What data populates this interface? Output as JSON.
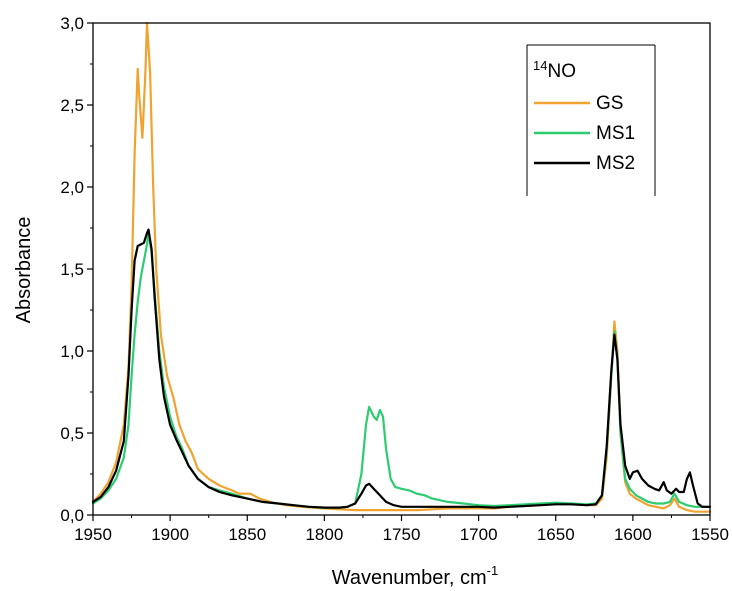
{
  "chart_data": {
    "type": "line",
    "title": "",
    "xlabel": "Wavenumber, cm",
    "xlabel_superscript": "-1",
    "ylabel": "Absorbance",
    "xlim": [
      1950,
      1550
    ],
    "ylim": [
      0,
      3.0
    ],
    "x_reversed": true,
    "x_ticks": [
      1950,
      1900,
      1850,
      1800,
      1750,
      1700,
      1650,
      1600,
      1550
    ],
    "x_tick_labels": [
      "1950",
      "1900",
      "1850",
      "1800",
      "1750",
      "1700",
      "1650",
      "1600",
      "1550"
    ],
    "y_ticks": [
      0,
      0.5,
      1.0,
      1.5,
      2.0,
      2.5,
      3.0
    ],
    "y_tick_labels": [
      "0,0",
      "0,5",
      "1,0",
      "1,5",
      "2,0",
      "2,5",
      "3,0"
    ],
    "grid": false,
    "legend": {
      "position": "top-right",
      "title_superscript": "14",
      "title": "NO"
    },
    "series": [
      {
        "name": "GS",
        "color": "#f0a330",
        "points": [
          [
            1950,
            0.08
          ],
          [
            1945,
            0.13
          ],
          [
            1940,
            0.2
          ],
          [
            1935,
            0.32
          ],
          [
            1930,
            0.55
          ],
          [
            1927,
            0.9
          ],
          [
            1925,
            1.4
          ],
          [
            1923,
            2.2
          ],
          [
            1921,
            2.72
          ],
          [
            1920,
            2.55
          ],
          [
            1918,
            2.3
          ],
          [
            1916,
            2.7
          ],
          [
            1915,
            3.0
          ],
          [
            1913,
            2.7
          ],
          [
            1911,
            2.0
          ],
          [
            1909,
            1.5
          ],
          [
            1906,
            1.1
          ],
          [
            1902,
            0.85
          ],
          [
            1898,
            0.72
          ],
          [
            1894,
            0.55
          ],
          [
            1890,
            0.45
          ],
          [
            1886,
            0.38
          ],
          [
            1882,
            0.28
          ],
          [
            1875,
            0.22
          ],
          [
            1868,
            0.18
          ],
          [
            1860,
            0.15
          ],
          [
            1855,
            0.13
          ],
          [
            1848,
            0.13
          ],
          [
            1842,
            0.1
          ],
          [
            1835,
            0.08
          ],
          [
            1825,
            0.06
          ],
          [
            1815,
            0.05
          ],
          [
            1800,
            0.04
          ],
          [
            1790,
            0.035
          ],
          [
            1780,
            0.03
          ],
          [
            1770,
            0.03
          ],
          [
            1760,
            0.03
          ],
          [
            1750,
            0.03
          ],
          [
            1740,
            0.03
          ],
          [
            1730,
            0.035
          ],
          [
            1720,
            0.04
          ],
          [
            1710,
            0.04
          ],
          [
            1700,
            0.04
          ],
          [
            1690,
            0.04
          ],
          [
            1680,
            0.05
          ],
          [
            1670,
            0.055
          ],
          [
            1660,
            0.06
          ],
          [
            1650,
            0.07
          ],
          [
            1640,
            0.065
          ],
          [
            1630,
            0.06
          ],
          [
            1624,
            0.06
          ],
          [
            1620,
            0.1
          ],
          [
            1617,
            0.35
          ],
          [
            1614,
            0.85
          ],
          [
            1612,
            1.18
          ],
          [
            1610,
            1.0
          ],
          [
            1608,
            0.5
          ],
          [
            1605,
            0.2
          ],
          [
            1602,
            0.13
          ],
          [
            1598,
            0.1
          ],
          [
            1594,
            0.08
          ],
          [
            1590,
            0.06
          ],
          [
            1585,
            0.05
          ],
          [
            1580,
            0.04
          ],
          [
            1576,
            0.06
          ],
          [
            1573,
            0.1
          ],
          [
            1570,
            0.05
          ],
          [
            1565,
            0.03
          ],
          [
            1560,
            0.02
          ],
          [
            1555,
            0.02
          ],
          [
            1550,
            0.02
          ]
        ]
      },
      {
        "name": "MS1",
        "color": "#2ecc71",
        "points": [
          [
            1950,
            0.07
          ],
          [
            1945,
            0.1
          ],
          [
            1940,
            0.15
          ],
          [
            1935,
            0.22
          ],
          [
            1930,
            0.35
          ],
          [
            1927,
            0.55
          ],
          [
            1925,
            0.85
          ],
          [
            1923,
            1.1
          ],
          [
            1921,
            1.3
          ],
          [
            1919,
            1.45
          ],
          [
            1917,
            1.55
          ],
          [
            1915,
            1.65
          ],
          [
            1914,
            1.72
          ],
          [
            1912,
            1.6
          ],
          [
            1910,
            1.35
          ],
          [
            1907,
            1.0
          ],
          [
            1904,
            0.78
          ],
          [
            1900,
            0.6
          ],
          [
            1896,
            0.48
          ],
          [
            1892,
            0.4
          ],
          [
            1888,
            0.3
          ],
          [
            1882,
            0.22
          ],
          [
            1875,
            0.17
          ],
          [
            1868,
            0.15
          ],
          [
            1860,
            0.13
          ],
          [
            1850,
            0.1
          ],
          [
            1840,
            0.08
          ],
          [
            1830,
            0.07
          ],
          [
            1820,
            0.06
          ],
          [
            1810,
            0.05
          ],
          [
            1800,
            0.045
          ],
          [
            1790,
            0.045
          ],
          [
            1785,
            0.05
          ],
          [
            1780,
            0.07
          ],
          [
            1776,
            0.25
          ],
          [
            1773,
            0.55
          ],
          [
            1771,
            0.66
          ],
          [
            1768,
            0.6
          ],
          [
            1766,
            0.58
          ],
          [
            1764,
            0.64
          ],
          [
            1762,
            0.6
          ],
          [
            1760,
            0.4
          ],
          [
            1757,
            0.22
          ],
          [
            1754,
            0.17
          ],
          [
            1750,
            0.16
          ],
          [
            1745,
            0.15
          ],
          [
            1740,
            0.13
          ],
          [
            1735,
            0.12
          ],
          [
            1730,
            0.1
          ],
          [
            1720,
            0.08
          ],
          [
            1710,
            0.07
          ],
          [
            1700,
            0.06
          ],
          [
            1690,
            0.055
          ],
          [
            1680,
            0.06
          ],
          [
            1670,
            0.065
          ],
          [
            1660,
            0.07
          ],
          [
            1650,
            0.075
          ],
          [
            1640,
            0.07
          ],
          [
            1630,
            0.065
          ],
          [
            1624,
            0.07
          ],
          [
            1620,
            0.12
          ],
          [
            1617,
            0.4
          ],
          [
            1614,
            0.85
          ],
          [
            1612,
            1.12
          ],
          [
            1610,
            0.95
          ],
          [
            1608,
            0.5
          ],
          [
            1605,
            0.22
          ],
          [
            1602,
            0.16
          ],
          [
            1598,
            0.12
          ],
          [
            1594,
            0.1
          ],
          [
            1590,
            0.08
          ],
          [
            1585,
            0.07
          ],
          [
            1580,
            0.07
          ],
          [
            1576,
            0.08
          ],
          [
            1573,
            0.13
          ],
          [
            1570,
            0.08
          ],
          [
            1565,
            0.06
          ],
          [
            1560,
            0.05
          ],
          [
            1555,
            0.05
          ],
          [
            1550,
            0.05
          ]
        ]
      },
      {
        "name": "MS2",
        "color": "#000000",
        "points": [
          [
            1950,
            0.08
          ],
          [
            1945,
            0.11
          ],
          [
            1940,
            0.17
          ],
          [
            1935,
            0.27
          ],
          [
            1930,
            0.45
          ],
          [
            1927,
            0.85
          ],
          [
            1925,
            1.25
          ],
          [
            1923,
            1.55
          ],
          [
            1921,
            1.64
          ],
          [
            1919,
            1.65
          ],
          [
            1917,
            1.66
          ],
          [
            1915,
            1.72
          ],
          [
            1914,
            1.74
          ],
          [
            1912,
            1.62
          ],
          [
            1910,
            1.32
          ],
          [
            1907,
            0.95
          ],
          [
            1904,
            0.72
          ],
          [
            1900,
            0.55
          ],
          [
            1896,
            0.46
          ],
          [
            1892,
            0.38
          ],
          [
            1888,
            0.3
          ],
          [
            1882,
            0.22
          ],
          [
            1875,
            0.17
          ],
          [
            1868,
            0.14
          ],
          [
            1860,
            0.12
          ],
          [
            1850,
            0.1
          ],
          [
            1840,
            0.08
          ],
          [
            1830,
            0.07
          ],
          [
            1820,
            0.06
          ],
          [
            1810,
            0.05
          ],
          [
            1800,
            0.045
          ],
          [
            1790,
            0.045
          ],
          [
            1785,
            0.05
          ],
          [
            1780,
            0.07
          ],
          [
            1776,
            0.13
          ],
          [
            1773,
            0.18
          ],
          [
            1771,
            0.19
          ],
          [
            1768,
            0.16
          ],
          [
            1764,
            0.12
          ],
          [
            1760,
            0.08
          ],
          [
            1755,
            0.06
          ],
          [
            1750,
            0.05
          ],
          [
            1740,
            0.05
          ],
          [
            1730,
            0.05
          ],
          [
            1720,
            0.05
          ],
          [
            1710,
            0.05
          ],
          [
            1700,
            0.05
          ],
          [
            1690,
            0.045
          ],
          [
            1680,
            0.05
          ],
          [
            1670,
            0.055
          ],
          [
            1660,
            0.06
          ],
          [
            1650,
            0.065
          ],
          [
            1640,
            0.065
          ],
          [
            1630,
            0.06
          ],
          [
            1624,
            0.065
          ],
          [
            1620,
            0.12
          ],
          [
            1617,
            0.42
          ],
          [
            1614,
            0.88
          ],
          [
            1612,
            1.1
          ],
          [
            1610,
            0.95
          ],
          [
            1608,
            0.55
          ],
          [
            1605,
            0.3
          ],
          [
            1602,
            0.22
          ],
          [
            1600,
            0.26
          ],
          [
            1597,
            0.27
          ],
          [
            1594,
            0.22
          ],
          [
            1590,
            0.18
          ],
          [
            1586,
            0.16
          ],
          [
            1583,
            0.15
          ],
          [
            1580,
            0.2
          ],
          [
            1578,
            0.15
          ],
          [
            1575,
            0.13
          ],
          [
            1572,
            0.16
          ],
          [
            1570,
            0.14
          ],
          [
            1567,
            0.14
          ],
          [
            1565,
            0.22
          ],
          [
            1563,
            0.26
          ],
          [
            1561,
            0.18
          ],
          [
            1558,
            0.07
          ],
          [
            1555,
            0.05
          ],
          [
            1550,
            0.05
          ]
        ]
      }
    ]
  }
}
